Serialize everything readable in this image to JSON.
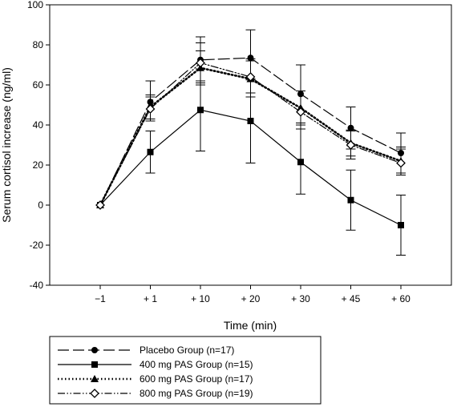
{
  "chart_data": {
    "type": "line",
    "xlabel": "Time (min)",
    "ylabel": "Serum cortisol  increase (ng/ml)",
    "categories": [
      "−1",
      "+ 1",
      "+ 10",
      "+ 20",
      "+ 30",
      "+ 45",
      "+ 60"
    ],
    "ylim": [
      -40,
      100
    ],
    "yticks": [
      -40,
      -20,
      0,
      20,
      40,
      60,
      80,
      100
    ],
    "grid": false,
    "legend_position": "bottom-left",
    "series": [
      {
        "name": "Placebo Group (n=17)",
        "values": [
          0,
          51.5,
          72.5,
          73.5,
          55.5,
          38.5,
          26
        ],
        "error_upper": [
          0,
          62,
          84,
          87.5,
          70,
          49,
          36
        ],
        "error_lower": [
          0,
          42,
          62,
          62.5,
          41,
          28,
          16
        ],
        "marker": "circle",
        "dash": "long-dash"
      },
      {
        "name": "400 mg PAS Group (n=15)",
        "values": [
          0,
          26.5,
          47.5,
          42,
          21.5,
          2.5,
          -10
        ],
        "error_upper": [
          0,
          37,
          68,
          63,
          41,
          17.5,
          5
        ],
        "error_lower": [
          0,
          16,
          27,
          21,
          5.5,
          -12.5,
          -25
        ],
        "marker": "square",
        "dash": "solid"
      },
      {
        "name": "600 mg PAS Group (n=17)",
        "values": [
          0,
          49,
          68.5,
          63,
          48.5,
          31,
          22
        ],
        "error_upper": [
          0,
          55,
          77,
          73,
          57,
          37.5,
          28
        ],
        "error_lower": [
          0,
          43,
          60,
          54,
          40,
          24.5,
          16
        ],
        "marker": "triangle",
        "dash": "dotted"
      },
      {
        "name": "800 mg PAS Group (n=19)",
        "values": [
          0,
          48,
          71,
          64,
          46.5,
          30,
          21
        ],
        "error_upper": [
          0,
          54,
          81,
          72,
          57,
          37,
          29
        ],
        "error_lower": [
          0,
          42,
          61,
          56,
          38,
          23,
          15
        ],
        "marker": "diamond-open",
        "dash": "dash-dot-dot"
      }
    ]
  }
}
